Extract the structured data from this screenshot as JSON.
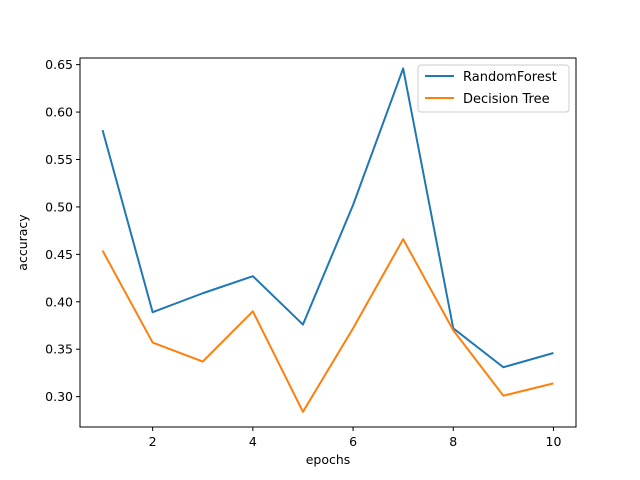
{
  "chart_data": {
    "type": "line",
    "title": "",
    "xlabel": "epochs",
    "ylabel": "accuracy",
    "xlim": [
      0.55,
      10.45
    ],
    "ylim": [
      0.268,
      0.657
    ],
    "xticks": [
      2,
      4,
      6,
      8,
      10
    ],
    "xtick_labels": [
      "2",
      "4",
      "6",
      "8",
      "10"
    ],
    "yticks": [
      0.3,
      0.35,
      0.4,
      0.45,
      0.5,
      0.55,
      0.6,
      0.65
    ],
    "ytick_labels": [
      "0.30",
      "0.35",
      "0.40",
      "0.45",
      "0.50",
      "0.55",
      "0.60",
      "0.65"
    ],
    "grid": false,
    "legend_position": "top-right",
    "x": [
      1,
      2,
      3,
      4,
      5,
      6,
      7,
      8,
      9,
      10
    ],
    "series": [
      {
        "name": "RandomForest",
        "color": "#1f77b4",
        "values": [
          0.581,
          0.389,
          0.409,
          0.427,
          0.376,
          0.502,
          0.646,
          0.372,
          0.331,
          0.346
        ]
      },
      {
        "name": "Decision Tree",
        "color": "#ff7f0e",
        "values": [
          0.454,
          0.357,
          0.337,
          0.39,
          0.284,
          0.372,
          0.466,
          0.37,
          0.301,
          0.314
        ]
      }
    ]
  }
}
